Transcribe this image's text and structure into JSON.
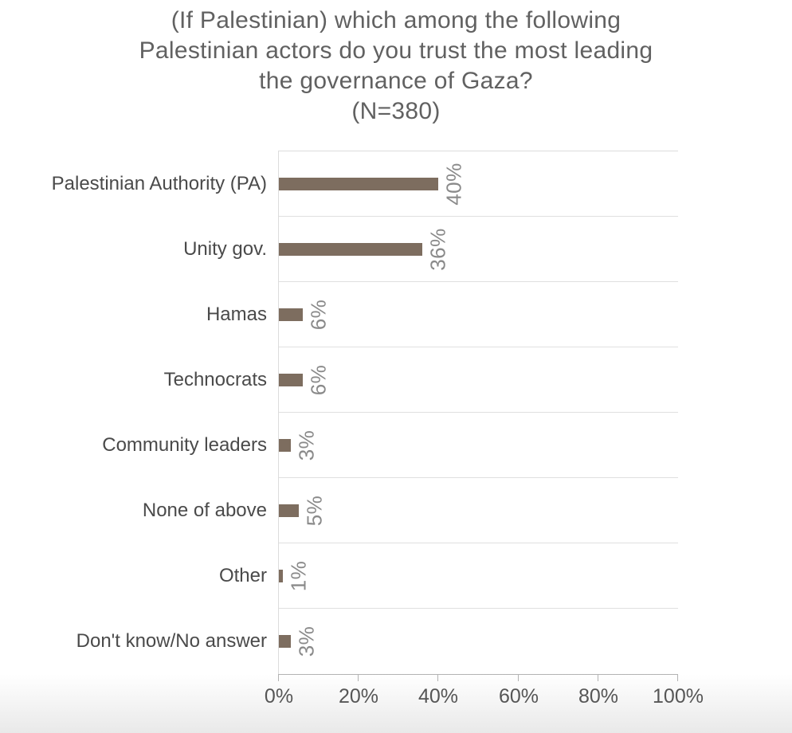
{
  "page": {
    "background": "#ffffff",
    "bottom_fade_color": "#e9e9e9"
  },
  "chart_data": {
    "type": "bar",
    "orientation": "horizontal",
    "title": "(If Palestinian) which among the following Palestinian actors do you trust the most leading the governance of Gaza? (N=380)",
    "title_lines": [
      "(If Palestinian) which among the following",
      "Palestinian actors do you trust the most leading",
      "the governance of Gaza?",
      "(N=380)"
    ],
    "sample_size": 380,
    "categories": [
      "Palestinian Authority (PA)",
      "Unity gov.",
      "Hamas",
      "Technocrats",
      "Community leaders",
      "None of above",
      "Other",
      "Don't know/No answer"
    ],
    "values": [
      40,
      36,
      6,
      6,
      3,
      5,
      1,
      3
    ],
    "data_labels": [
      "40%",
      "36%",
      "6%",
      "6%",
      "3%",
      "5%",
      "1%",
      "3%"
    ],
    "x_ticks": [
      "0%",
      "20%",
      "40%",
      "60%",
      "80%",
      "100%"
    ],
    "x_tick_values": [
      0,
      20,
      40,
      60,
      80,
      100
    ],
    "xlim": [
      0,
      100
    ],
    "xlabel": "",
    "ylabel": "",
    "legend": "none",
    "grid": "row separator lines only, no vertical gridlines",
    "bar_color": "#7d6d5f",
    "data_label_color": "#8a8a8a",
    "title_color": "#616161",
    "category_label_color": "#4a4a4a",
    "axis_label_color": "#565656",
    "axis_line_color": "#b3b3b3",
    "separator_line_color": "#e0e0e0"
  }
}
